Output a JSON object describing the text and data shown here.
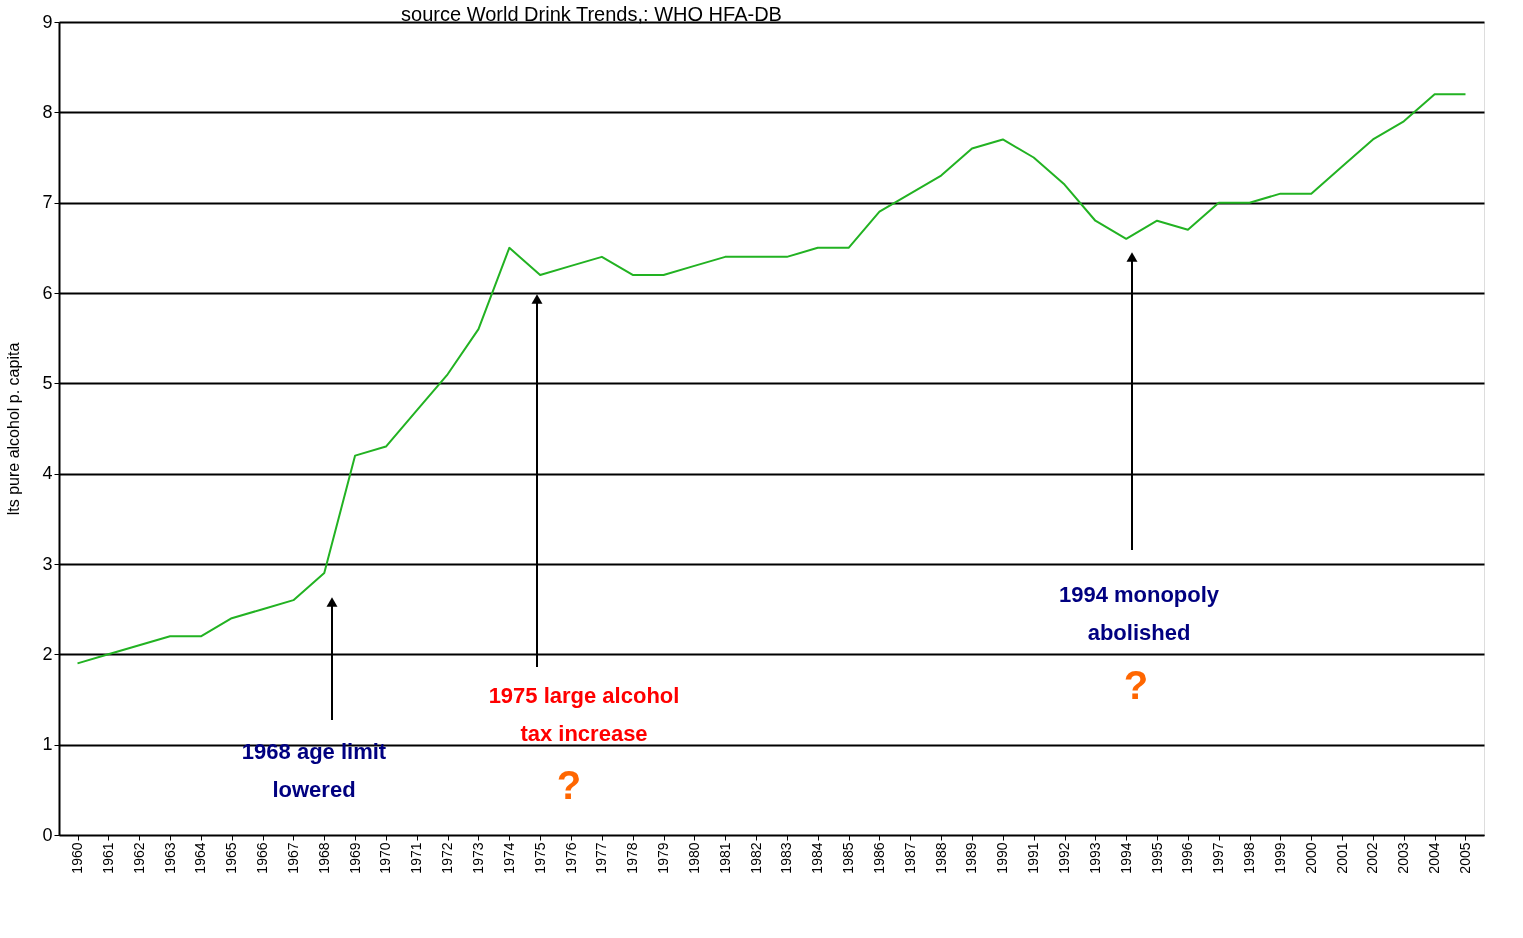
{
  "chart_data": {
    "type": "line",
    "title": "source  World Drink Trends,: WHO HFA-DB",
    "ylabel": "lts pure alcohol p. capita",
    "categories": [
      "1960",
      "1961",
      "1962",
      "1963",
      "1964",
      "1965",
      "1966",
      "1967",
      "1968",
      "1969",
      "1970",
      "1971",
      "1972",
      "1973",
      "1974",
      "1975",
      "1976",
      "1977",
      "1978",
      "1979",
      "1980",
      "1981",
      "1982",
      "1983",
      "1984",
      "1985",
      "1986",
      "1987",
      "1988",
      "1989",
      "1990",
      "1991",
      "1992",
      "1993",
      "1994",
      "1995",
      "1996",
      "1997",
      "1998",
      "1999",
      "2000",
      "2001",
      "2002",
      "2003",
      "2004",
      "2005"
    ],
    "series": [
      {
        "color": "#22b222",
        "values": [
          1.9,
          2.0,
          2.1,
          2.2,
          2.2,
          2.4,
          2.5,
          2.6,
          2.9,
          4.2,
          4.3,
          4.7,
          5.1,
          5.6,
          6.5,
          6.2,
          6.3,
          6.4,
          6.2,
          6.2,
          6.3,
          6.4,
          6.4,
          6.4,
          6.5,
          6.5,
          6.9,
          7.1,
          7.3,
          7.6,
          7.7,
          7.5,
          7.2,
          6.8,
          6.6,
          6.8,
          6.7,
          7.0,
          7.0,
          7.1,
          7.1,
          7.4,
          7.7,
          7.9,
          8.2,
          8.2
        ]
      }
    ],
    "ylim": [
      0,
      9
    ],
    "yticks": [
      0,
      1,
      2,
      3,
      4,
      5,
      6,
      7,
      8,
      9
    ],
    "grid": "y",
    "marker": "none",
    "line_style": "solid",
    "annotations": [
      "1968 age limit lowered",
      "1975 large alcohol tax increase",
      "1994 monopoly abolished",
      "?",
      "?"
    ]
  }
}
